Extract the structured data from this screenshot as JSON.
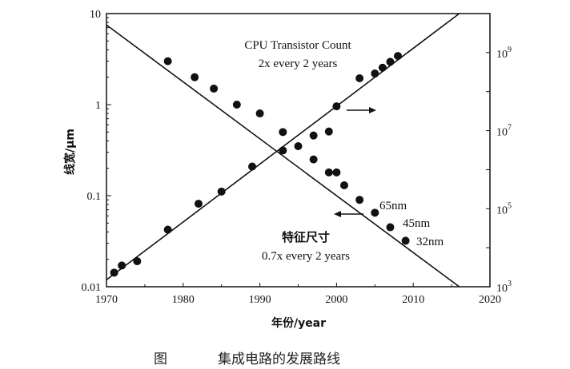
{
  "chart_data": {
    "type": "scatter",
    "x_axis": {
      "label": "年份/year",
      "range": [
        1970,
        2020
      ],
      "ticks": [
        "1970",
        "1980",
        "1990",
        "2000",
        "2010",
        "2020"
      ]
    },
    "y_left": {
      "label": "线宽/μm",
      "scale": "log",
      "range": [
        0.01,
        10
      ],
      "ticks": [
        "0.01",
        "0.1",
        "1",
        "10"
      ]
    },
    "y_right": {
      "scale": "log",
      "range_exponents": [
        3,
        10
      ],
      "tick_exponents": [
        "3",
        "5",
        "7",
        "9"
      ],
      "tick_base": "10"
    },
    "series": [
      {
        "axis": "left",
        "fit_line": [
          [
            1970,
            7.5
          ],
          [
            2016,
            0.01
          ]
        ],
        "points": [
          [
            1978,
            3.0
          ],
          [
            1981.5,
            2.0
          ],
          [
            1984,
            1.5
          ],
          [
            1987,
            1.0
          ],
          [
            1990,
            0.8
          ],
          [
            1993,
            0.5
          ],
          [
            1995,
            0.35
          ],
          [
            1997,
            0.25
          ],
          [
            1999,
            0.18
          ],
          [
            2000,
            0.18
          ],
          [
            2001,
            0.13
          ],
          [
            2003,
            0.09
          ],
          [
            2005,
            0.065
          ],
          [
            2007,
            0.045
          ],
          [
            2009,
            0.032
          ]
        ]
      },
      {
        "axis": "right",
        "fit_line": [
          [
            1970,
            1500
          ],
          [
            2016,
            10000000000
          ]
        ],
        "points": [
          [
            1971,
            2300
          ],
          [
            1972,
            3500
          ],
          [
            1974,
            4500
          ],
          [
            1978,
            29000
          ],
          [
            1982,
            134000
          ],
          [
            1985,
            275000
          ],
          [
            1989,
            1200000
          ],
          [
            1993,
            3100000
          ],
          [
            1997,
            7500000
          ],
          [
            1999,
            9500000
          ],
          [
            2000,
            42000000
          ],
          [
            2003,
            220000000
          ],
          [
            2005,
            291000000
          ],
          [
            2006,
            410000000
          ],
          [
            2007,
            580000000
          ],
          [
            2008,
            820000000
          ]
        ]
      }
    ],
    "annotations": {
      "transistor_title": "CPU Transistor Count",
      "transistor_rate": "2x every 2 years",
      "feature_title": "特征尺寸",
      "feature_rate": "0.7x every 2 years",
      "label_65": "65nm",
      "label_45": "45nm",
      "label_32": "32nm"
    }
  },
  "caption": {
    "figure": "图",
    "text": "集成电路的发展路线"
  }
}
